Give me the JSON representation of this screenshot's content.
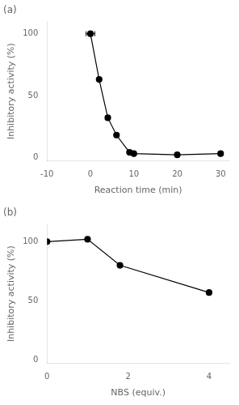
{
  "chart_data": [
    {
      "type": "line",
      "title": "(a)",
      "x_label": "Reaction time (min)",
      "y_label": "Inhibitory activity (%)",
      "x": [
        0,
        2,
        4,
        6,
        9,
        10,
        20,
        30
      ],
      "values": [
        100,
        63,
        32,
        18,
        4,
        3,
        2,
        3
      ],
      "xerr": [
        1.0,
        null,
        null,
        null,
        null,
        null,
        null,
        null
      ],
      "yerr": [
        null,
        null,
        null,
        null,
        null,
        1,
        0.5,
        0.5
      ],
      "color": "#000000",
      "marker": "circle",
      "line_style": "solid",
      "grid": false,
      "xlim": [
        -10,
        32
      ],
      "xticks": [
        -10,
        0,
        10,
        20,
        30
      ],
      "ylim": [
        -3,
        110
      ],
      "yticks": [
        0,
        50,
        100
      ]
    },
    {
      "type": "line",
      "title": "(b)",
      "x_label": "NBS (equiv.)",
      "y_label": "Inhibitory activity (%)",
      "x": [
        0,
        1,
        1.8,
        4
      ],
      "values": [
        100,
        102,
        80,
        57
      ],
      "color": "#000000",
      "marker": "circle",
      "line_style": "solid",
      "grid": false,
      "xlim": [
        0,
        4.5
      ],
      "xticks": [
        0,
        2,
        4
      ],
      "ylim": [
        -3,
        115
      ],
      "yticks": [
        0,
        50,
        100
      ]
    }
  ]
}
